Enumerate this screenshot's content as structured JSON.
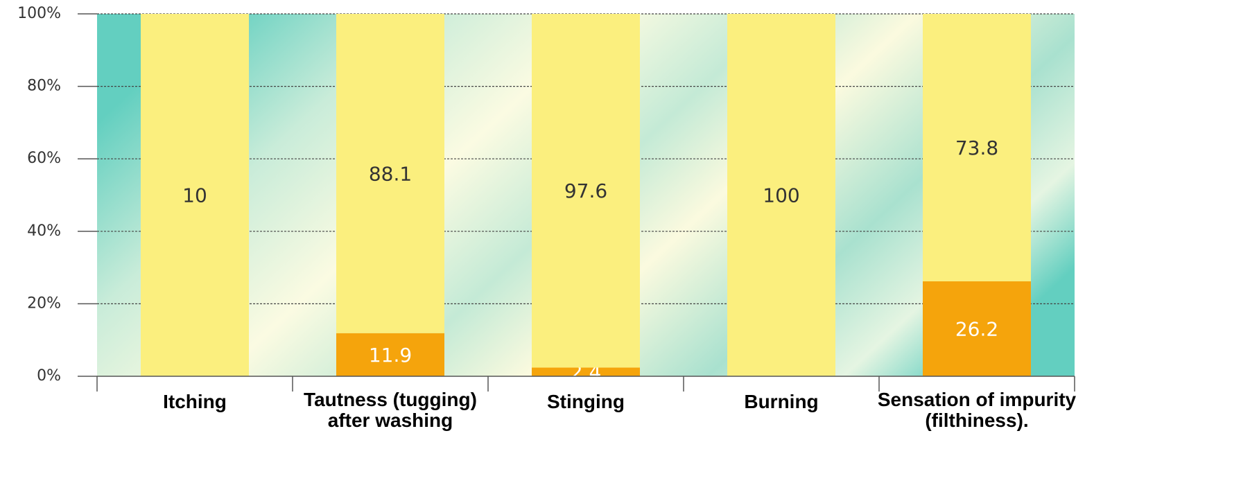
{
  "chart_data": {
    "type": "bar",
    "stacked": "percent",
    "categories": [
      "Itching",
      "Tautness (tugging)\nafter washing",
      "Stinging",
      "Burning",
      "Sensation of impurity\n(filthiness)."
    ],
    "series": [
      {
        "color": "#f5a40c",
        "label_color": "#ffffff",
        "values": [
          null,
          11.9,
          2.4,
          null,
          26.2
        ]
      },
      {
        "color": "#fbef7e",
        "label_color": "#333333",
        "values": [
          10,
          88.1,
          97.6,
          100,
          73.8
        ]
      }
    ],
    "ylim": [
      0,
      100
    ],
    "yticks": [
      {
        "value": 0,
        "label": "0%"
      },
      {
        "value": 20,
        "label": "20%"
      },
      {
        "value": 40,
        "label": "40%"
      },
      {
        "value": 60,
        "label": "60%"
      },
      {
        "value": 80,
        "label": "80%"
      },
      {
        "value": 100,
        "label": "100%"
      }
    ],
    "grid": true
  }
}
